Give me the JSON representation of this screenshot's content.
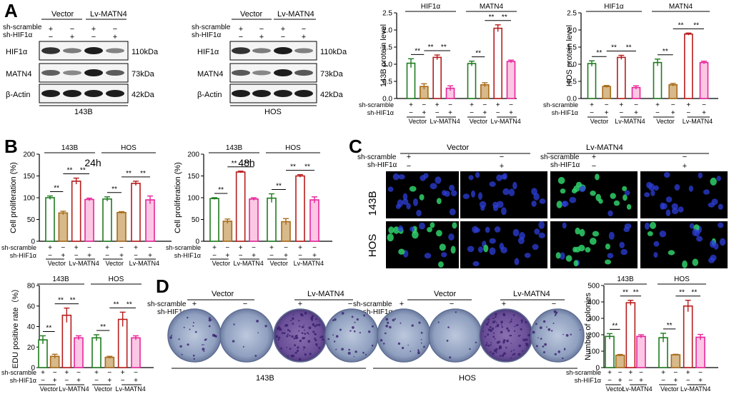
{
  "figure": {
    "panel_letters": {
      "A": "A",
      "B": "B",
      "C": "C",
      "D": "D"
    },
    "vector": "Vector",
    "lv": "Lv-MATN4",
    "sh_scramble": "sh-scramble",
    "sh_hif": "sh-HIF1α",
    "plus": "+",
    "minus": "−",
    "sig": "**"
  },
  "western": {
    "blots": [
      {
        "cell": "143B",
        "bands": [
          {
            "label": "HIF1α",
            "kda": "110kDa"
          },
          {
            "label": "MATN4",
            "kda": "73kDa"
          },
          {
            "label": "β-Actin",
            "kda": "42kDa"
          }
        ]
      },
      {
        "cell": "HOS",
        "bands": [
          {
            "label": "HIF1α",
            "kda": "110kDa"
          },
          {
            "label": "MATN4",
            "kda": "73kDa"
          },
          {
            "label": "β-Actin",
            "kda": "42kDa"
          }
        ]
      }
    ]
  },
  "chart_data": [
    {
      "id": "wb143b",
      "type": "bar",
      "ylabel": "143B protein level",
      "ylim": [
        0,
        2.5
      ],
      "ticks": [
        "0.0",
        "0.5",
        "1.0",
        "1.5",
        "2.0",
        "2.5"
      ],
      "groups": [
        "HIF1α",
        "MATN4"
      ],
      "values": [
        1.03,
        0.35,
        1.2,
        0.3,
        1.02,
        0.4,
        2.05,
        1.08
      ],
      "errors": [
        0.13,
        0.08,
        0.07,
        0.07,
        0.07,
        0.06,
        0.1,
        0.04
      ]
    },
    {
      "id": "wbhos",
      "type": "bar",
      "ylabel": "HOS protein level",
      "ylim": [
        0,
        2.5
      ],
      "ticks": [
        "0.0",
        "0.5",
        "1.0",
        "1.5",
        "2.0",
        "2.5"
      ],
      "groups": [
        "HIF1α",
        "MATN4"
      ],
      "values": [
        1.02,
        0.35,
        1.2,
        0.32,
        1.05,
        0.4,
        1.88,
        1.05
      ],
      "errors": [
        0.08,
        0.03,
        0.06,
        0.05,
        0.1,
        0.04,
        0.03,
        0.04
      ]
    },
    {
      "id": "cp24",
      "type": "bar",
      "title": "24h",
      "ylabel": "Cell proliferation (%)",
      "ylim": [
        0,
        200
      ],
      "ticks": [
        "0",
        "50",
        "100",
        "150",
        "200"
      ],
      "groups": [
        "143B",
        "HOS"
      ],
      "values": [
        100,
        65,
        138,
        96,
        97,
        66,
        133,
        95
      ],
      "errors": [
        4,
        4,
        7,
        3,
        5,
        2,
        5,
        9
      ]
    },
    {
      "id": "cp48",
      "type": "bar",
      "title": "48h",
      "ylabel": "Cell proliferation (%)",
      "ylim": [
        0,
        200
      ],
      "ticks": [
        "0",
        "50",
        "100",
        "150",
        "200"
      ],
      "groups": [
        "143B",
        "HOS"
      ],
      "values": [
        98,
        46,
        159,
        97,
        99,
        45,
        150,
        95
      ],
      "errors": [
        2,
        5,
        2,
        3,
        10,
        7,
        3,
        7
      ]
    },
    {
      "id": "edu",
      "type": "bar",
      "ylabel": "EDU positive rate（%）",
      "ylim": [
        0,
        80
      ],
      "ticks": [
        "0",
        "20",
        "40",
        "60",
        "80"
      ],
      "groups": [
        "143B",
        "HOS"
      ],
      "values": [
        27,
        11,
        51,
        29,
        29,
        10,
        47,
        29
      ],
      "errors": [
        4,
        2,
        7,
        2,
        3,
        1,
        7,
        2
      ]
    },
    {
      "id": "col",
      "type": "bar",
      "ylabel": "Number of colonies",
      "ylim": [
        0,
        500
      ],
      "ticks": [
        "0",
        "100",
        "200",
        "300",
        "400",
        "500"
      ],
      "groups": [
        "143B",
        "HOS"
      ],
      "values": [
        190,
        75,
        395,
        190,
        182,
        78,
        375,
        185
      ],
      "errors": [
        17,
        5,
        15,
        10,
        27,
        3,
        35,
        17
      ]
    }
  ],
  "if_panel": {
    "rows": [
      "143B",
      "HOS"
    ]
  },
  "colony_panel": {
    "cells": [
      "143B",
      "HOS"
    ]
  }
}
